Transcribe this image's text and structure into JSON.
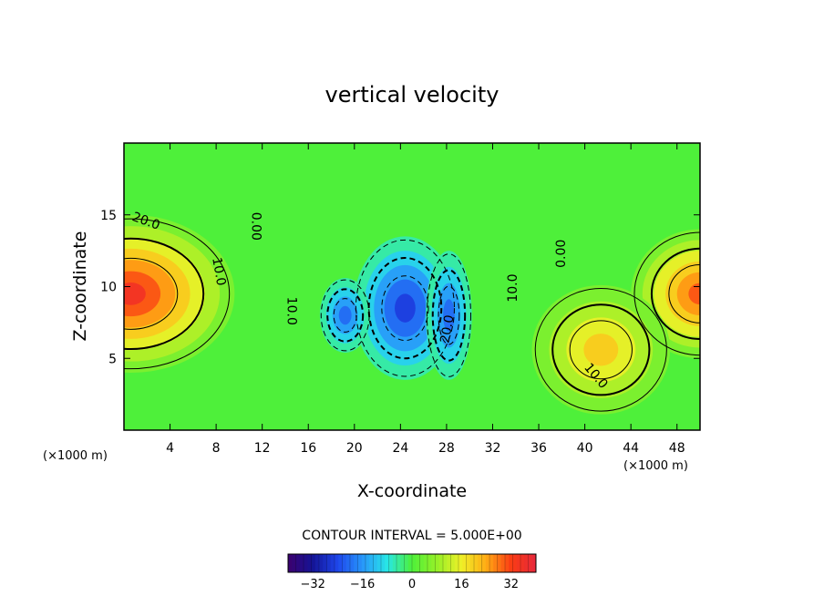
{
  "chart_data": {
    "type": "heatmap",
    "title": "vertical velocity",
    "xlabel": "X-coordinate",
    "ylabel": "Z-coordinate",
    "x_unit": "(×1000 m)",
    "y_unit": "(×1000 m)",
    "xlim": [
      0,
      50
    ],
    "ylim": [
      0,
      20
    ],
    "x_ticks": [
      4,
      8,
      12,
      16,
      20,
      24,
      28,
      32,
      36,
      40,
      44,
      48
    ],
    "y_ticks": [
      5,
      10,
      15
    ],
    "contour_interval_text": "CONTOUR INTERVAL = 5.000E+00",
    "contour_labels": [
      {
        "text": "20.0",
        "x": 1.8,
        "z": 14.3,
        "angle": 20
      },
      {
        "text": "10.0",
        "x": 7.9,
        "z": 11.0,
        "angle": 80
      },
      {
        "text": "0.00",
        "x": 11.1,
        "z": 14.2,
        "angle": 90
      },
      {
        "text": "10.0",
        "x": 14.2,
        "z": 8.3,
        "angle": 90
      },
      {
        "text": "20.0",
        "x": 28.4,
        "z": 7.0,
        "angle": -80
      },
      {
        "text": "10.0",
        "x": 34.1,
        "z": 9.9,
        "angle": -90
      },
      {
        "text": "0.00",
        "x": 38.3,
        "z": 12.3,
        "angle": -90
      },
      {
        "text": "10.0",
        "x": 40.7,
        "z": 3.6,
        "angle": 50
      }
    ],
    "field_features": [
      {
        "x": 0.6,
        "z": 9.5,
        "w": 34
      },
      {
        "x": 50.0,
        "z": 9.5,
        "w": 30
      },
      {
        "x": 41.4,
        "z": 5.6,
        "w": 22
      },
      {
        "x": 24.4,
        "z": 8.5,
        "w": -26
      },
      {
        "x": 19.2,
        "z": 8.0,
        "w": -22
      },
      {
        "x": 28.2,
        "z": 8.0,
        "w": -20
      }
    ],
    "colorbar": {
      "range": [
        -40,
        40
      ],
      "ticks": [
        -32,
        -16,
        0,
        16,
        32
      ],
      "tick_labels": [
        "−32",
        "−16",
        "0",
        "16",
        "32"
      ]
    }
  }
}
